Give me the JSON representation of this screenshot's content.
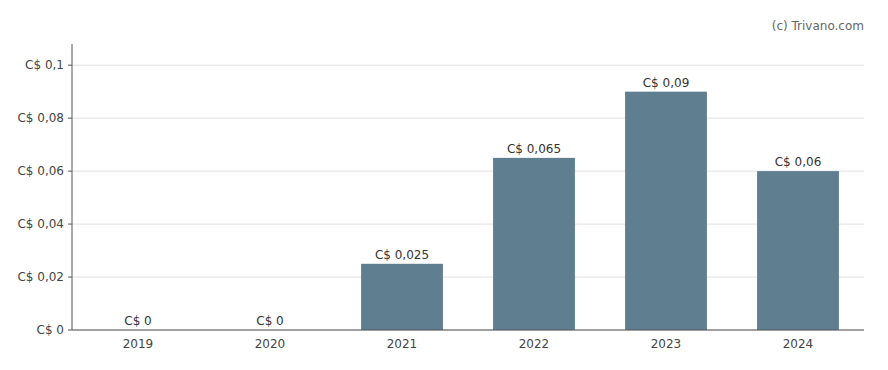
{
  "chart_data": {
    "type": "bar",
    "categories": [
      "2019",
      "2020",
      "2021",
      "2022",
      "2023",
      "2024"
    ],
    "values": [
      0,
      0,
      0.025,
      0.065,
      0.09,
      0.06
    ],
    "value_labels": [
      "C$ 0",
      "C$ 0",
      "C$ 0,025",
      "C$ 0,065",
      "C$ 0,09",
      "C$ 0,06"
    ],
    "data_labels": true,
    "color": "#5f7f90",
    "ylim": [
      0,
      0.108
    ],
    "yticks": [
      {
        "value": 0,
        "label": "C$ 0"
      },
      {
        "value": 0.02,
        "label": "C$ 0,02"
      },
      {
        "value": 0.04,
        "label": "C$ 0,04"
      },
      {
        "value": 0.06,
        "label": "C$ 0,06"
      },
      {
        "value": 0.08,
        "label": "C$ 0,08"
      },
      {
        "value": 0.1,
        "label": "C$ 0,1"
      }
    ],
    "grid": true,
    "annotations": [
      "(c) Trivano.com"
    ]
  }
}
